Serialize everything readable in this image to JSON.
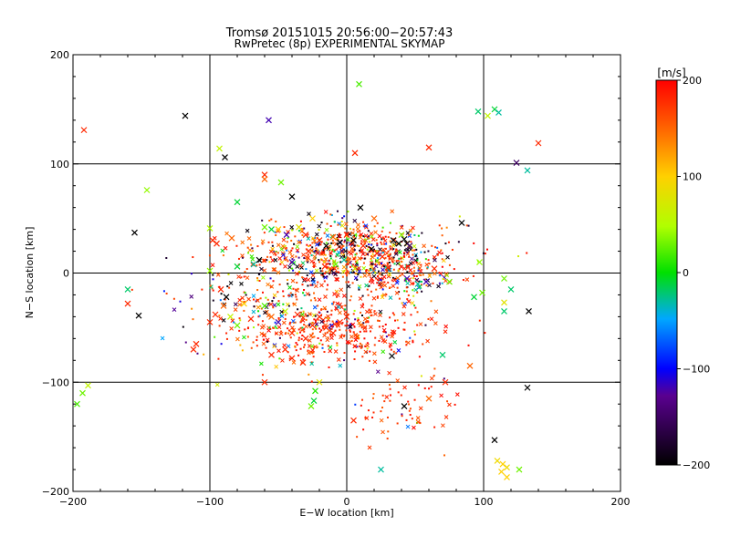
{
  "chart_data": {
    "type": "scatter",
    "title": "Tromsø 20151015 20:56:00−20:57:43",
    "subtitle": "RwPretec (8p) EXPERIMENTAL SKYMAP",
    "xlabel": "E−W location [km]",
    "ylabel": "N−S location [km]",
    "xlim": [
      -200,
      200
    ],
    "ylim": [
      -200,
      200
    ],
    "xticks": [
      -200,
      -100,
      0,
      100,
      200
    ],
    "yticks": [
      -200,
      -100,
      0,
      100,
      200
    ],
    "grid": true,
    "colorbar": {
      "label": "[m/s]",
      "range": [
        -200,
        200
      ],
      "ticks": [
        200,
        100,
        0,
        -100,
        -200
      ]
    },
    "points": [
      {
        "x": -192,
        "y": 131,
        "v": 180,
        "m": "x"
      },
      {
        "x": -118,
        "y": 144,
        "v": -200,
        "m": "x"
      },
      {
        "x": -57,
        "y": 140,
        "v": -120,
        "m": "x"
      },
      {
        "x": -93,
        "y": 114,
        "v": 60,
        "m": "x"
      },
      {
        "x": -89,
        "y": 106,
        "v": -200,
        "m": "x"
      },
      {
        "x": 9,
        "y": 173,
        "v": 20,
        "m": "x"
      },
      {
        "x": 6,
        "y": 110,
        "v": 180,
        "m": "x"
      },
      {
        "x": 60,
        "y": 115,
        "v": 180,
        "m": "x"
      },
      {
        "x": 96,
        "y": 148,
        "v": -20,
        "m": "x"
      },
      {
        "x": 103,
        "y": 144,
        "v": 60,
        "m": "x"
      },
      {
        "x": 108,
        "y": 150,
        "v": -10,
        "m": "x"
      },
      {
        "x": 111,
        "y": 147,
        "v": -30,
        "m": "x"
      },
      {
        "x": 124,
        "y": 101,
        "v": -150,
        "m": "x"
      },
      {
        "x": 132,
        "y": 94,
        "v": -30,
        "m": "x"
      },
      {
        "x": 140,
        "y": 119,
        "v": 180,
        "m": "x"
      },
      {
        "x": -60,
        "y": 90,
        "v": 180,
        "m": "x"
      },
      {
        "x": -60,
        "y": 86,
        "v": 150,
        "m": "x"
      },
      {
        "x": -48,
        "y": 83,
        "v": 30,
        "m": "x"
      },
      {
        "x": -40,
        "y": 70,
        "v": -200,
        "m": "x"
      },
      {
        "x": -80,
        "y": 65,
        "v": -10,
        "m": "x"
      },
      {
        "x": -155,
        "y": 37,
        "v": -200,
        "m": "x"
      },
      {
        "x": -100,
        "y": 41,
        "v": 50,
        "m": "x"
      },
      {
        "x": -98,
        "y": 30,
        "v": 180,
        "m": "x"
      },
      {
        "x": -95,
        "y": 27,
        "v": 180,
        "m": "x"
      },
      {
        "x": -84,
        "y": 32,
        "v": 150,
        "m": "x"
      },
      {
        "x": -60,
        "y": 42,
        "v": 30,
        "m": "x"
      },
      {
        "x": -50,
        "y": 40,
        "v": 100,
        "m": "x"
      },
      {
        "x": -44,
        "y": 35,
        "v": -120,
        "m": "x"
      },
      {
        "x": -35,
        "y": 42,
        "v": 80,
        "m": "x"
      },
      {
        "x": -30,
        "y": 35,
        "v": 180,
        "m": "x"
      },
      {
        "x": -28,
        "y": 20,
        "v": 180,
        "m": "x"
      },
      {
        "x": -20,
        "y": 30,
        "v": 180,
        "m": "x"
      },
      {
        "x": -15,
        "y": 25,
        "v": -200,
        "m": "x"
      },
      {
        "x": -10,
        "y": 33,
        "v": 150,
        "m": "x"
      },
      {
        "x": -5,
        "y": 28,
        "v": -200,
        "m": "x"
      },
      {
        "x": 0,
        "y": 35,
        "v": 180,
        "m": "x"
      },
      {
        "x": 5,
        "y": 30,
        "v": -200,
        "m": "x"
      },
      {
        "x": 10,
        "y": 60,
        "v": -200,
        "m": "x"
      },
      {
        "x": 12,
        "y": 25,
        "v": 180,
        "m": "x"
      },
      {
        "x": 18,
        "y": 22,
        "v": -200,
        "m": "x"
      },
      {
        "x": 22,
        "y": 18,
        "v": 180,
        "m": "x"
      },
      {
        "x": 26,
        "y": 15,
        "v": 180,
        "m": "x"
      },
      {
        "x": 34,
        "y": 30,
        "v": -200,
        "m": "x"
      },
      {
        "x": 38,
        "y": 27,
        "v": -200,
        "m": "x"
      },
      {
        "x": 42,
        "y": 31,
        "v": -200,
        "m": "x"
      },
      {
        "x": 44,
        "y": 27,
        "v": -200,
        "m": "x"
      },
      {
        "x": 46,
        "y": 25,
        "v": -150,
        "m": "x"
      },
      {
        "x": 84,
        "y": 46,
        "v": -200,
        "m": "x"
      },
      {
        "x": -8,
        "y": 8,
        "v": 30,
        "m": "x"
      },
      {
        "x": -2,
        "y": 12,
        "v": -30,
        "m": "x"
      },
      {
        "x": 6,
        "y": 4,
        "v": 80,
        "m": "x"
      },
      {
        "x": -16,
        "y": 6,
        "v": 180,
        "m": "x"
      },
      {
        "x": -40,
        "y": 10,
        "v": -120,
        "m": "x"
      },
      {
        "x": -64,
        "y": 12,
        "v": -200,
        "m": "x"
      },
      {
        "x": -68,
        "y": 8,
        "v": -30,
        "m": "x"
      },
      {
        "x": -80,
        "y": 6,
        "v": -10,
        "m": "x"
      },
      {
        "x": -100,
        "y": 2,
        "v": 40,
        "m": "x"
      },
      {
        "x": 30,
        "y": 5,
        "v": 180,
        "m": "x"
      },
      {
        "x": 44,
        "y": -5,
        "v": -120,
        "m": "x"
      },
      {
        "x": 52,
        "y": -10,
        "v": -30,
        "m": "x"
      },
      {
        "x": 58,
        "y": -8,
        "v": -120,
        "m": "x"
      },
      {
        "x": 64,
        "y": 4,
        "v": 180,
        "m": "x"
      },
      {
        "x": 97,
        "y": 10,
        "v": 40,
        "m": "x"
      },
      {
        "x": 99,
        "y": -18,
        "v": 30,
        "m": "x"
      },
      {
        "x": 93,
        "y": -22,
        "v": -10,
        "m": "x"
      },
      {
        "x": 115,
        "y": -5,
        "v": 30,
        "m": "x"
      },
      {
        "x": 115,
        "y": -27,
        "v": 80,
        "m": "x"
      },
      {
        "x": 133,
        "y": -35,
        "v": -200,
        "m": "x"
      },
      {
        "x": 115,
        "y": -35,
        "v": -20,
        "m": "x"
      },
      {
        "x": -160,
        "y": -28,
        "v": 180,
        "m": "x"
      },
      {
        "x": -152,
        "y": -39,
        "v": -200,
        "m": "x"
      },
      {
        "x": -110,
        "y": -65,
        "v": 180,
        "m": "x"
      },
      {
        "x": -112,
        "y": -70,
        "v": 180,
        "m": "x"
      },
      {
        "x": -100,
        "y": -45,
        "v": 180,
        "m": "x"
      },
      {
        "x": -96,
        "y": -38,
        "v": 180,
        "m": "x"
      },
      {
        "x": -90,
        "y": -30,
        "v": 150,
        "m": "x"
      },
      {
        "x": -92,
        "y": -15,
        "v": 180,
        "m": "x"
      },
      {
        "x": -88,
        "y": -22,
        "v": -200,
        "m": "x"
      },
      {
        "x": -85,
        "y": -40,
        "v": 60,
        "m": "x"
      },
      {
        "x": -80,
        "y": -48,
        "v": 30,
        "m": "x"
      },
      {
        "x": -75,
        "y": -28,
        "v": 100,
        "m": "x"
      },
      {
        "x": -70,
        "y": -42,
        "v": 180,
        "m": "x"
      },
      {
        "x": -55,
        "y": -40,
        "v": 150,
        "m": "x"
      },
      {
        "x": -50,
        "y": -45,
        "v": -120,
        "m": "x"
      },
      {
        "x": -45,
        "y": -35,
        "v": 60,
        "m": "x"
      },
      {
        "x": -40,
        "y": -55,
        "v": 180,
        "m": "x"
      },
      {
        "x": -36,
        "y": -38,
        "v": 180,
        "m": "x"
      },
      {
        "x": -30,
        "y": -60,
        "v": 180,
        "m": "x"
      },
      {
        "x": -25,
        "y": -48,
        "v": 180,
        "m": "x"
      },
      {
        "x": -20,
        "y": -40,
        "v": 180,
        "m": "x"
      },
      {
        "x": -15,
        "y": -50,
        "v": 180,
        "m": "x"
      },
      {
        "x": -10,
        "y": -55,
        "v": 180,
        "m": "x"
      },
      {
        "x": -5,
        "y": -45,
        "v": 180,
        "m": "x"
      },
      {
        "x": 0,
        "y": -40,
        "v": 180,
        "m": "x"
      },
      {
        "x": -55,
        "y": -75,
        "v": 180,
        "m": "x"
      },
      {
        "x": -45,
        "y": -70,
        "v": 180,
        "m": "x"
      },
      {
        "x": -40,
        "y": -78,
        "v": 180,
        "m": "x"
      },
      {
        "x": -32,
        "y": -82,
        "v": 180,
        "m": "x"
      },
      {
        "x": -60,
        "y": -100,
        "v": 180,
        "m": "x"
      },
      {
        "x": -20,
        "y": -100,
        "v": 80,
        "m": "x"
      },
      {
        "x": -23,
        "y": -108,
        "v": 10,
        "m": "x"
      },
      {
        "x": -24,
        "y": -117,
        "v": -10,
        "m": "x"
      },
      {
        "x": -26,
        "y": -122,
        "v": 30,
        "m": "x"
      },
      {
        "x": 33,
        "y": -76,
        "v": -200,
        "m": "x"
      },
      {
        "x": 70,
        "y": -75,
        "v": -20,
        "m": "x"
      },
      {
        "x": 72,
        "y": -100,
        "v": 180,
        "m": "x"
      },
      {
        "x": 42,
        "y": -122,
        "v": -200,
        "m": "x"
      },
      {
        "x": 132,
        "y": -105,
        "v": -200,
        "m": "x"
      },
      {
        "x": 108,
        "y": -153,
        "v": -200,
        "m": "x"
      },
      {
        "x": 110,
        "y": -172,
        "v": 90,
        "m": "x"
      },
      {
        "x": 114,
        "y": -175,
        "v": 100,
        "m": "x"
      },
      {
        "x": 117,
        "y": -178,
        "v": 90,
        "m": "x"
      },
      {
        "x": 113,
        "y": -182,
        "v": 100,
        "m": "x"
      },
      {
        "x": 117,
        "y": -187,
        "v": 100,
        "m": "x"
      },
      {
        "x": 126,
        "y": -180,
        "v": 30,
        "m": "x"
      },
      {
        "x": -193,
        "y": -110,
        "v": 30,
        "m": "x"
      },
      {
        "x": -197,
        "y": -120,
        "v": 20,
        "m": "x"
      },
      {
        "x": -189,
        "y": -103,
        "v": 60,
        "m": "x"
      },
      {
        "x": -160,
        "y": -15,
        "v": -20,
        "m": "x"
      },
      {
        "x": -146,
        "y": 76,
        "v": 40,
        "m": "x"
      },
      {
        "x": -55,
        "y": 40,
        "v": -10,
        "m": "x"
      },
      {
        "x": -25,
        "y": 50,
        "v": 100,
        "m": "x"
      },
      {
        "x": 20,
        "y": 50,
        "v": 150,
        "m": "x"
      },
      {
        "x": 40,
        "y": 35,
        "v": 40,
        "m": "x"
      },
      {
        "x": 75,
        "y": -8,
        "v": 30,
        "m": "x"
      },
      {
        "x": 120,
        "y": -15,
        "v": -20,
        "m": "x"
      },
      {
        "x": -60,
        "y": -30,
        "v": 20,
        "m": "x"
      },
      {
        "x": 90,
        "y": -85,
        "v": 150,
        "m": "x"
      },
      {
        "x": 60,
        "y": -115,
        "v": 150,
        "m": "x"
      },
      {
        "x": 25,
        "y": -180,
        "v": -30,
        "m": "x"
      },
      {
        "x": 5,
        "y": -135,
        "v": 180,
        "m": "x"
      }
    ],
    "cloud": {
      "clusters": [
        {
          "cx": 0,
          "cy": 18,
          "sx": 38,
          "sy": 14,
          "n": 650,
          "vmode": "mixed"
        },
        {
          "cx": -10,
          "cy": -50,
          "sx": 35,
          "sy": 16,
          "n": 420,
          "vmode": "red"
        },
        {
          "cx": -60,
          "cy": -25,
          "sx": 35,
          "sy": 25,
          "n": 180,
          "vmode": "mixed"
        },
        {
          "cx": 40,
          "cy": -5,
          "sx": 22,
          "sy": 12,
          "n": 160,
          "vmode": "mixed"
        },
        {
          "cx": 40,
          "cy": -120,
          "sx": 20,
          "sy": 18,
          "n": 70,
          "vmode": "red"
        }
      ],
      "seed": 20151015
    }
  }
}
